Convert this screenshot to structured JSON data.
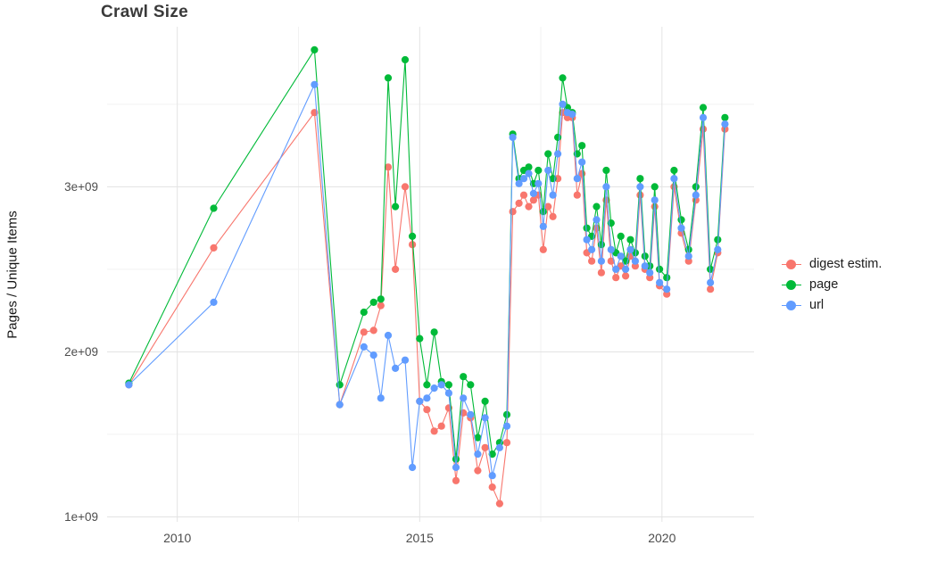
{
  "chart_data": {
    "type": "line",
    "title": "Crawl Size",
    "xlabel": "",
    "ylabel": "Pages / Unique Items",
    "grid": true,
    "legend_position": "right",
    "xlim": [
      2008.55,
      2021.9
    ],
    "ylim": [
      970000000,
      3970000000
    ],
    "xticks": [
      {
        "value": 2010,
        "label": "2010"
      },
      {
        "value": 2015,
        "label": "2015"
      },
      {
        "value": 2020,
        "label": "2020"
      }
    ],
    "yticks": [
      {
        "value": 1000000000.0,
        "label": "1e+09"
      },
      {
        "value": 2000000000.0,
        "label": "2e+09"
      },
      {
        "value": 3000000000.0,
        "label": "3e+09"
      }
    ],
    "xticks_minor": [
      2012.5,
      2017.5
    ],
    "yticks_minor": [
      1500000000.0,
      2500000000.0,
      3500000000.0
    ],
    "x": [
      2009.0,
      2010.75,
      2012.83,
      2013.35,
      2013.85,
      2014.05,
      2014.2,
      2014.35,
      2014.5,
      2014.7,
      2014.85,
      2015.0,
      2015.15,
      2015.3,
      2015.45,
      2015.6,
      2015.75,
      2015.9,
      2016.05,
      2016.2,
      2016.35,
      2016.5,
      2016.65,
      2016.8,
      2016.92,
      2017.05,
      2017.15,
      2017.25,
      2017.35,
      2017.45,
      2017.55,
      2017.65,
      2017.75,
      2017.85,
      2017.95,
      2018.05,
      2018.15,
      2018.25,
      2018.35,
      2018.45,
      2018.55,
      2018.65,
      2018.75,
      2018.85,
      2018.95,
      2019.05,
      2019.15,
      2019.25,
      2019.35,
      2019.45,
      2019.55,
      2019.65,
      2019.75,
      2019.85,
      2019.95,
      2020.1,
      2020.25,
      2020.4,
      2020.55,
      2020.7,
      2020.85,
      2021.0,
      2021.15,
      2021.3
    ],
    "series": [
      {
        "name": "digest estim.",
        "color": "#F8766D",
        "values": [
          1800000000.0,
          2630000000.0,
          3450000000.0,
          1680000000.0,
          2120000000.0,
          2130000000.0,
          2280000000.0,
          3120000000.0,
          2500000000.0,
          3000000000.0,
          2650000000.0,
          1700000000.0,
          1650000000.0,
          1520000000.0,
          1550000000.0,
          1660000000.0,
          1220000000.0,
          1630000000.0,
          1600000000.0,
          1280000000.0,
          1420000000.0,
          1180000000.0,
          1080000000.0,
          1450000000.0,
          2850000000.0,
          2900000000.0,
          2950000000.0,
          2880000000.0,
          2920000000.0,
          2950000000.0,
          2620000000.0,
          2880000000.0,
          2820000000.0,
          3050000000.0,
          3450000000.0,
          3420000000.0,
          3420000000.0,
          2950000000.0,
          3080000000.0,
          2600000000.0,
          2550000000.0,
          2750000000.0,
          2480000000.0,
          2920000000.0,
          2550000000.0,
          2450000000.0,
          2520000000.0,
          2460000000.0,
          2580000000.0,
          2520000000.0,
          2950000000.0,
          2500000000.0,
          2450000000.0,
          2880000000.0,
          2400000000.0,
          2350000000.0,
          3000000000.0,
          2720000000.0,
          2550000000.0,
          2920000000.0,
          3350000000.0,
          2380000000.0,
          2600000000.0,
          3350000000.0
        ]
      },
      {
        "name": "page",
        "color": "#00BA38",
        "values": [
          1810000000.0,
          2870000000.0,
          3830000000.0,
          1800000000.0,
          2240000000.0,
          2300000000.0,
          2320000000.0,
          3660000000.0,
          2880000000.0,
          3770000000.0,
          2700000000.0,
          2080000000.0,
          1800000000.0,
          2120000000.0,
          1820000000.0,
          1800000000.0,
          1350000000.0,
          1850000000.0,
          1800000000.0,
          1480000000.0,
          1700000000.0,
          1380000000.0,
          1450000000.0,
          1620000000.0,
          3320000000.0,
          3050000000.0,
          3100000000.0,
          3120000000.0,
          3020000000.0,
          3100000000.0,
          2850000000.0,
          3200000000.0,
          3050000000.0,
          3300000000.0,
          3660000000.0,
          3480000000.0,
          3450000000.0,
          3200000000.0,
          3250000000.0,
          2750000000.0,
          2700000000.0,
          2880000000.0,
          2650000000.0,
          3100000000.0,
          2780000000.0,
          2600000000.0,
          2700000000.0,
          2550000000.0,
          2680000000.0,
          2600000000.0,
          3050000000.0,
          2580000000.0,
          2520000000.0,
          3000000000.0,
          2500000000.0,
          2450000000.0,
          3100000000.0,
          2800000000.0,
          2620000000.0,
          3000000000.0,
          3480000000.0,
          2500000000.0,
          2680000000.0,
          3420000000.0
        ]
      },
      {
        "name": "url",
        "color": "#619CFF",
        "values": [
          1800000000.0,
          2300000000.0,
          3620000000.0,
          1680000000.0,
          2030000000.0,
          1980000000.0,
          1720000000.0,
          2100000000.0,
          1900000000.0,
          1950000000.0,
          1300000000.0,
          1700000000.0,
          1720000000.0,
          1780000000.0,
          1800000000.0,
          1750000000.0,
          1300000000.0,
          1720000000.0,
          1620000000.0,
          1380000000.0,
          1600000000.0,
          1250000000.0,
          1420000000.0,
          1550000000.0,
          3300000000.0,
          3020000000.0,
          3050000000.0,
          3080000000.0,
          2960000000.0,
          3020000000.0,
          2760000000.0,
          3100000000.0,
          2950000000.0,
          3200000000.0,
          3500000000.0,
          3450000000.0,
          3440000000.0,
          3050000000.0,
          3150000000.0,
          2680000000.0,
          2620000000.0,
          2800000000.0,
          2550000000.0,
          3000000000.0,
          2620000000.0,
          2500000000.0,
          2580000000.0,
          2500000000.0,
          2620000000.0,
          2550000000.0,
          3000000000.0,
          2520000000.0,
          2480000000.0,
          2920000000.0,
          2420000000.0,
          2380000000.0,
          3050000000.0,
          2750000000.0,
          2580000000.0,
          2950000000.0,
          3420000000.0,
          2420000000.0,
          2620000000.0,
          3380000000.0
        ]
      }
    ]
  },
  "legend": {
    "items": [
      {
        "label": "digest estim.",
        "color": "#F8766D"
      },
      {
        "label": "page",
        "color": "#00BA38"
      },
      {
        "label": "url",
        "color": "#619CFF"
      }
    ]
  },
  "style": {
    "grid_major_color": "#e3e3e3",
    "grid_minor_color": "#f2f2f2",
    "tick_label_color": "#4d4d4d"
  }
}
